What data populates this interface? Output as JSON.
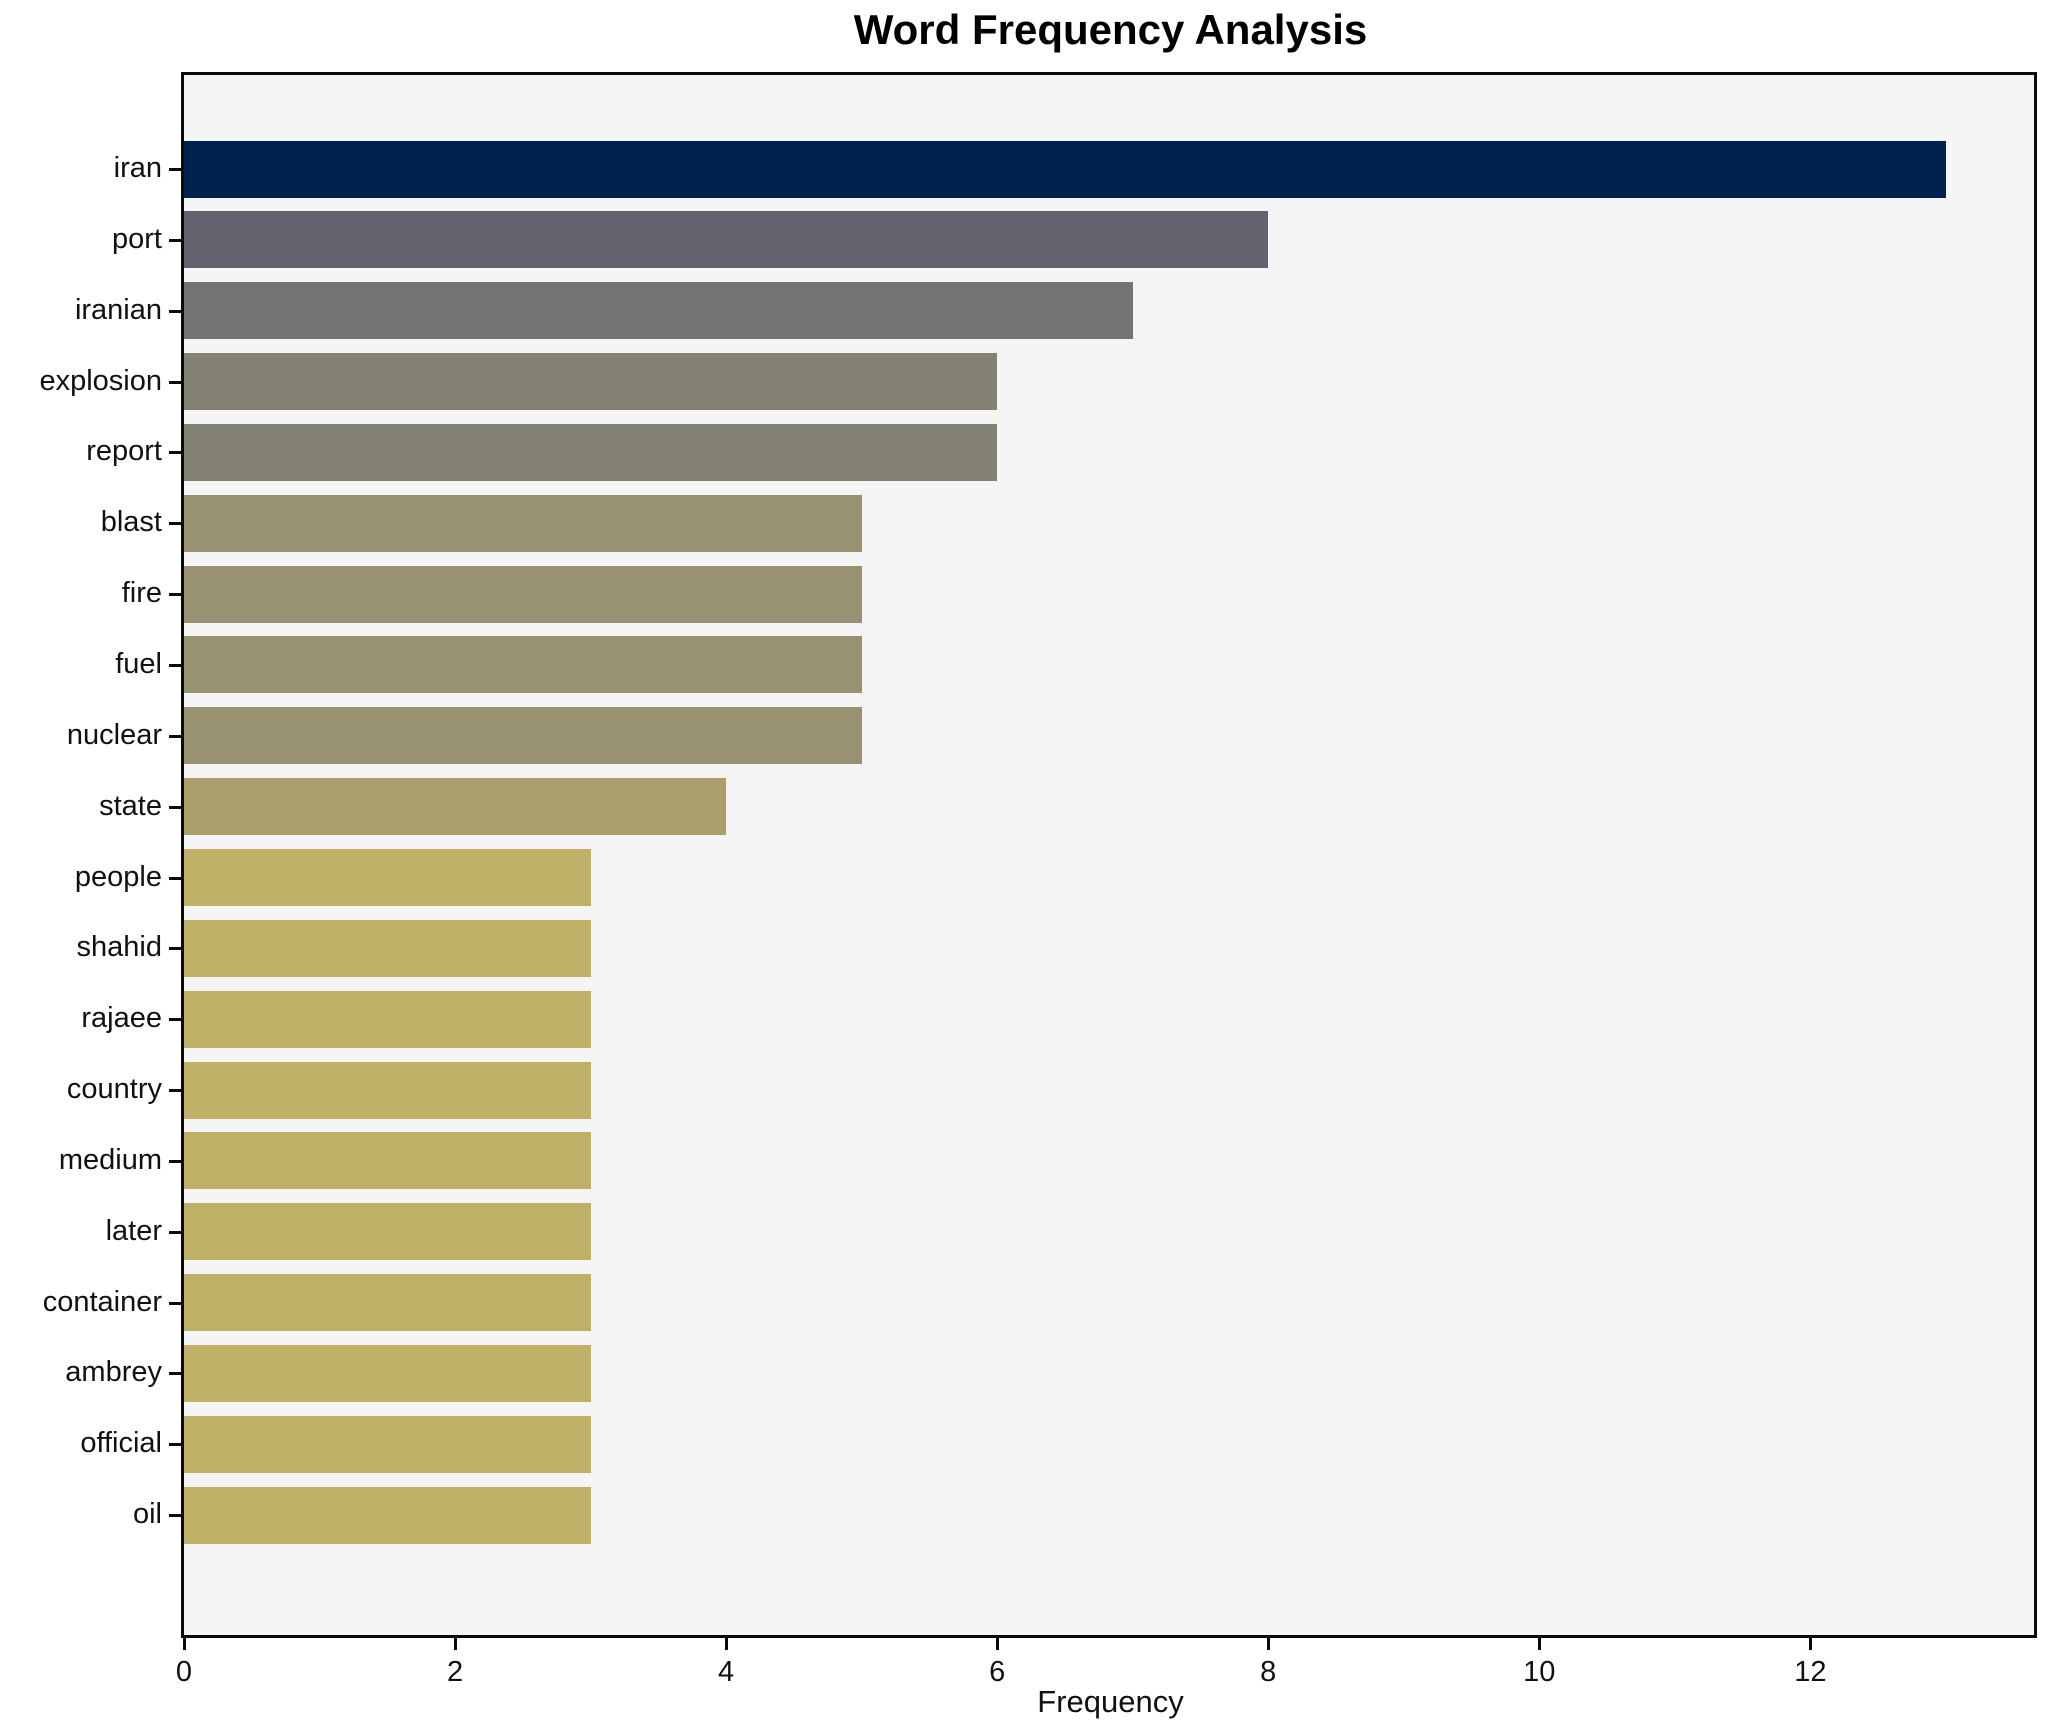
{
  "chart_data": {
    "type": "bar",
    "orientation": "horizontal",
    "title": "Word Frequency Analysis",
    "xlabel": "Frequency",
    "ylabel": "",
    "categories": [
      "iran",
      "port",
      "iranian",
      "explosion",
      "report",
      "blast",
      "fire",
      "fuel",
      "nuclear",
      "state",
      "people",
      "shahid",
      "rajaee",
      "country",
      "medium",
      "later",
      "container",
      "ambrey",
      "official",
      "oil"
    ],
    "values": [
      13,
      8,
      7,
      6,
      6,
      5,
      5,
      5,
      5,
      4,
      3,
      3,
      3,
      3,
      3,
      3,
      3,
      3,
      3,
      3
    ],
    "bar_colors": [
      "#00224e",
      "#636370",
      "#737372",
      "#838275",
      "#838275",
      "#989272",
      "#989272",
      "#989272",
      "#989272",
      "#ab9f6b",
      "#bfb068",
      "#bfb068",
      "#bfb068",
      "#bfb068",
      "#bfb068",
      "#bfb068",
      "#bfb068",
      "#bfb068",
      "#bfb068",
      "#bfb068"
    ],
    "xticks": [
      0,
      2,
      4,
      6,
      8,
      10,
      12
    ],
    "xlim": [
      0,
      13.65
    ],
    "grid": false,
    "legend": null,
    "plot_background": "#f5f5f6",
    "figure_background": "#ffffff",
    "spine_color": "#0a0a0a"
  }
}
